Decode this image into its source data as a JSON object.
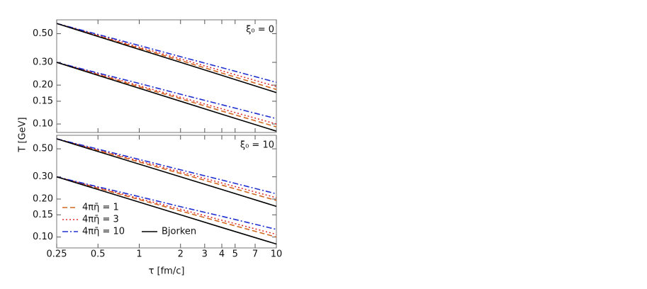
{
  "chart_data": [
    {
      "type": "line",
      "ylabel": "T [GeV]",
      "annotation": "ξ₀ = 0",
      "log_x": true,
      "log_y": true,
      "x": [
        0.25,
        0.5,
        1,
        2,
        4,
        10
      ],
      "xlim": [
        0.25,
        10
      ],
      "ylim": [
        0.086,
        0.64
      ],
      "yticks": [
        {
          "value": 0.1,
          "label": "0.10"
        },
        {
          "value": 0.15,
          "label": "0.15"
        },
        {
          "value": 0.2,
          "label": "0.20"
        },
        {
          "value": 0.3,
          "label": "0.30"
        },
        {
          "value": 0.5,
          "label": "0.50"
        }
      ],
      "series": [
        {
          "color": "#d2691e",
          "dash": "dashed",
          "curves": [
            [
              0.6,
              0.481,
              0.386,
              0.31,
              0.248,
              0.185
            ],
            [
              0.3,
              0.242,
              0.194,
              0.157,
              0.126,
              0.095
            ]
          ]
        },
        {
          "color": "#e03030",
          "dash": "dotted",
          "curves": [
            [
              0.6,
              0.486,
              0.393,
              0.319,
              0.258,
              0.195
            ],
            [
              0.3,
              0.244,
              0.198,
              0.161,
              0.131,
              0.1
            ]
          ]
        },
        {
          "color": "#2030d0",
          "dash": "dashdot",
          "curves": [
            [
              0.6,
              0.493,
              0.405,
              0.332,
              0.273,
              0.21
            ],
            [
              0.3,
              0.248,
              0.206,
              0.17,
              0.141,
              0.11
            ]
          ]
        },
        {
          "color": "#000000",
          "dash": "solid",
          "curves": [
            [
              0.6,
              0.476,
              0.378,
              0.3,
              0.238,
              0.175
            ],
            [
              0.3,
              0.238,
              0.189,
              0.15,
              0.119,
              0.088
            ]
          ]
        }
      ]
    },
    {
      "type": "line",
      "xlabel": "τ [fm/c]",
      "annotation": "ξ₀ = 10",
      "log_x": true,
      "log_y": true,
      "legend": "lower left",
      "x": [
        0.25,
        0.5,
        1,
        2,
        4,
        10
      ],
      "xlim": [
        0.25,
        10
      ],
      "ylim": [
        0.082,
        0.64
      ],
      "xticks": [
        0.25,
        0.5,
        1,
        2,
        3,
        4,
        5,
        7,
        10
      ],
      "yticks": [
        {
          "value": 0.1,
          "label": "0.10"
        },
        {
          "value": 0.15,
          "label": "0.15"
        },
        {
          "value": 0.2,
          "label": "0.20"
        },
        {
          "value": 0.3,
          "label": "0.30"
        },
        {
          "value": 0.5,
          "label": "0.50"
        }
      ],
      "series": [
        {
          "name": "4πη̄ = 1",
          "color": "#d2691e",
          "dash": "dashed",
          "curves": [
            [
              0.6,
              0.486,
              0.393,
              0.319,
              0.258,
              0.195
            ],
            [
              0.3,
              0.244,
              0.198,
              0.161,
              0.131,
              0.1
            ]
          ]
        },
        {
          "name": "4πη̄ = 3",
          "color": "#e03030",
          "dash": "dotted",
          "curves": [
            [
              0.6,
              0.49,
              0.401,
              0.328,
              0.268,
              0.205
            ],
            [
              0.3,
              0.246,
              0.202,
              0.166,
              0.136,
              0.105
            ]
          ]
        },
        {
          "name": "4πη̄ = 10",
          "color": "#2030d0",
          "dash": "dashdot",
          "curves": [
            [
              0.6,
              0.497,
              0.412,
              0.341,
              0.283,
              0.22
            ],
            [
              0.3,
              0.25,
              0.209,
              0.174,
              0.146,
              0.115
            ]
          ]
        },
        {
          "name": "Bjorken",
          "color": "#000000",
          "dash": "solid",
          "curves": [
            [
              0.6,
              0.476,
              0.378,
              0.3,
              0.238,
              0.175
            ],
            [
              0.3,
              0.238,
              0.189,
              0.15,
              0.119,
              0.088
            ]
          ]
        }
      ]
    }
  ]
}
